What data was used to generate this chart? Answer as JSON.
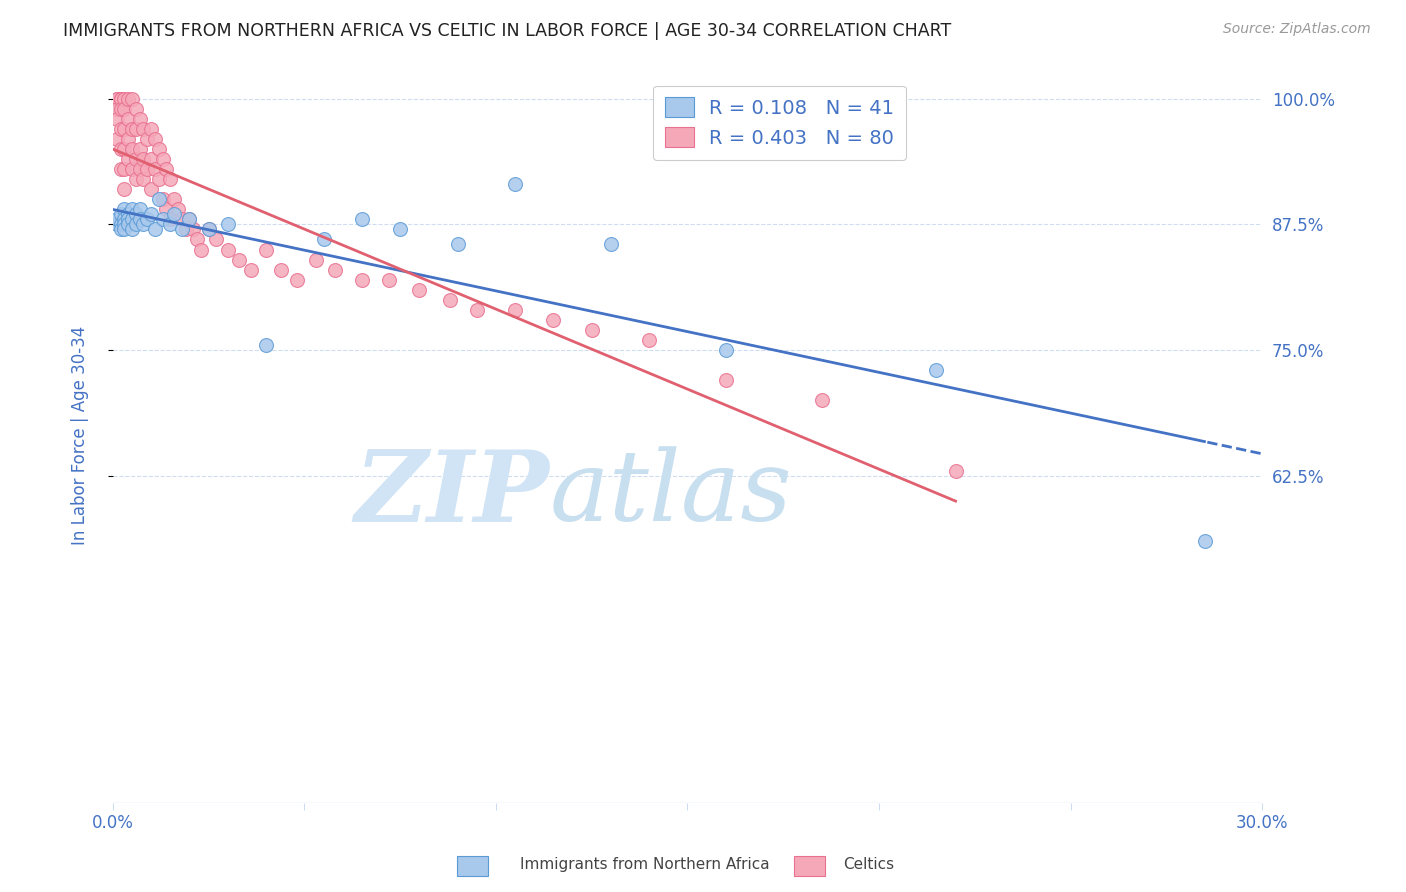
{
  "title": "IMMIGRANTS FROM NORTHERN AFRICA VS CELTIC IN LABOR FORCE | AGE 30-34 CORRELATION CHART",
  "source": "Source: ZipAtlas.com",
  "ylabel": "In Labor Force | Age 30-34",
  "xlim": [
    0.0,
    0.3
  ],
  "ylim": [
    0.3,
    1.03
  ],
  "xticks": [
    0.0,
    0.05,
    0.1,
    0.15,
    0.2,
    0.25,
    0.3
  ],
  "xticklabels": [
    "0.0%",
    "",
    "",
    "",
    "",
    "",
    "30.0%"
  ],
  "yticks": [
    0.625,
    0.75,
    0.875,
    1.0
  ],
  "yticklabels": [
    "62.5%",
    "75.0%",
    "87.5%",
    "100.0%"
  ],
  "blue_color": "#A8C8EC",
  "pink_color": "#F5A8B8",
  "blue_edge_color": "#5B9BD5",
  "pink_edge_color": "#E87090",
  "blue_label": "Immigrants from Northern Africa",
  "pink_label": "Celtics",
  "blue_R": 0.108,
  "blue_N": 41,
  "pink_R": 0.403,
  "pink_N": 80,
  "trend_blue_color": "#4472C4",
  "trend_pink_color": "#E06070",
  "watermark_zip": "ZIP",
  "watermark_atlas": "atlas",
  "watermark_color": "#D5E8F5",
  "legend_label_color": "#4472C4",
  "axis_color": "#4472C4",
  "grid_color": "#D0DCF0",
  "blue_points_x": [
    0.001,
    0.001,
    0.002,
    0.002,
    0.002,
    0.003,
    0.003,
    0.003,
    0.003,
    0.004,
    0.004,
    0.004,
    0.005,
    0.005,
    0.005,
    0.006,
    0.006,
    0.007,
    0.007,
    0.008,
    0.009,
    0.01,
    0.011,
    0.012,
    0.013,
    0.015,
    0.016,
    0.018,
    0.02,
    0.025,
    0.03,
    0.04,
    0.055,
    0.065,
    0.075,
    0.09,
    0.105,
    0.13,
    0.16,
    0.215,
    0.285
  ],
  "blue_points_y": [
    0.875,
    0.88,
    0.885,
    0.875,
    0.87,
    0.89,
    0.88,
    0.875,
    0.87,
    0.885,
    0.88,
    0.875,
    0.89,
    0.88,
    0.87,
    0.885,
    0.875,
    0.89,
    0.88,
    0.875,
    0.88,
    0.885,
    0.87,
    0.9,
    0.88,
    0.875,
    0.885,
    0.87,
    0.88,
    0.87,
    0.875,
    0.755,
    0.86,
    0.88,
    0.87,
    0.855,
    0.915,
    0.855,
    0.75,
    0.73,
    0.56
  ],
  "pink_points_x": [
    0.001,
    0.001,
    0.001,
    0.001,
    0.001,
    0.002,
    0.002,
    0.002,
    0.002,
    0.002,
    0.002,
    0.003,
    0.003,
    0.003,
    0.003,
    0.003,
    0.003,
    0.004,
    0.004,
    0.004,
    0.004,
    0.005,
    0.005,
    0.005,
    0.005,
    0.006,
    0.006,
    0.006,
    0.006,
    0.007,
    0.007,
    0.007,
    0.008,
    0.008,
    0.008,
    0.009,
    0.009,
    0.01,
    0.01,
    0.01,
    0.011,
    0.011,
    0.012,
    0.012,
    0.013,
    0.013,
    0.014,
    0.014,
    0.015,
    0.015,
    0.016,
    0.017,
    0.018,
    0.019,
    0.02,
    0.021,
    0.022,
    0.023,
    0.025,
    0.027,
    0.03,
    0.033,
    0.036,
    0.04,
    0.044,
    0.048,
    0.053,
    0.058,
    0.065,
    0.072,
    0.08,
    0.088,
    0.095,
    0.105,
    0.115,
    0.125,
    0.14,
    0.16,
    0.185,
    0.22
  ],
  "pink_points_y": [
    1.0,
    1.0,
    0.99,
    0.98,
    0.96,
    1.0,
    1.0,
    0.99,
    0.97,
    0.95,
    0.93,
    1.0,
    0.99,
    0.97,
    0.95,
    0.93,
    0.91,
    1.0,
    0.98,
    0.96,
    0.94,
    1.0,
    0.97,
    0.95,
    0.93,
    0.99,
    0.97,
    0.94,
    0.92,
    0.98,
    0.95,
    0.93,
    0.97,
    0.94,
    0.92,
    0.96,
    0.93,
    0.97,
    0.94,
    0.91,
    0.96,
    0.93,
    0.95,
    0.92,
    0.94,
    0.9,
    0.93,
    0.89,
    0.92,
    0.88,
    0.9,
    0.89,
    0.88,
    0.87,
    0.88,
    0.87,
    0.86,
    0.85,
    0.87,
    0.86,
    0.85,
    0.84,
    0.83,
    0.85,
    0.83,
    0.82,
    0.84,
    0.83,
    0.82,
    0.82,
    0.81,
    0.8,
    0.79,
    0.79,
    0.78,
    0.77,
    0.76,
    0.72,
    0.7,
    0.63
  ]
}
